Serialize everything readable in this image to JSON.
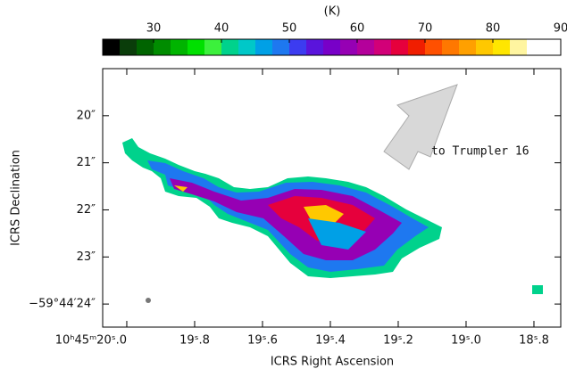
{
  "chart_data": {
    "type": "image",
    "colorbar": {
      "label": "(K)",
      "clim": [
        22.5,
        90
      ],
      "ticks": [
        30,
        40,
        50,
        60,
        70,
        80,
        90
      ],
      "colors": [
        "#000000",
        "#0a3d0a",
        "#006400",
        "#008c00",
        "#00b400",
        "#00e000",
        "#3cf03c",
        "#00d28c",
        "#00c8c8",
        "#00a0e6",
        "#1e78f0",
        "#3c3cf0",
        "#5a14dc",
        "#7800c8",
        "#9600b4",
        "#b4009b",
        "#d20078",
        "#e6003c",
        "#f01e00",
        "#ff5000",
        "#ff7800",
        "#ffa000",
        "#ffc800",
        "#ffe600",
        "#fff5a0",
        "#ffffff",
        "#ffffff"
      ]
    },
    "x_label": "ICRS Right Ascension",
    "y_label": "ICRS Declination",
    "xlim": [
      20.071,
      18.721
    ],
    "xticks": [
      {
        "value": 20.0,
        "label": "10ʰ45ᵐ20ˢ.0"
      },
      {
        "value": 19.8,
        "label": "19ˢ.8"
      },
      {
        "value": 19.6,
        "label": "19ˢ.6"
      },
      {
        "value": 19.4,
        "label": "19ˢ.4"
      },
      {
        "value": 19.2,
        "label": "19ˢ.2"
      },
      {
        "value": 19.0,
        "label": "19ˢ.0"
      },
      {
        "value": 18.8,
        "label": "18ˢ.8"
      }
    ],
    "ylim": [
      24.49,
      19.0
    ],
    "yticks": [
      {
        "value": 20,
        "label": "20″"
      },
      {
        "value": 21,
        "label": "21″"
      },
      {
        "value": 22,
        "label": "22″"
      },
      {
        "value": 23,
        "label": "23″"
      },
      {
        "value": 24,
        "label": "−59°44′24″"
      }
    ],
    "annotation": "to Trumpler 16"
  }
}
